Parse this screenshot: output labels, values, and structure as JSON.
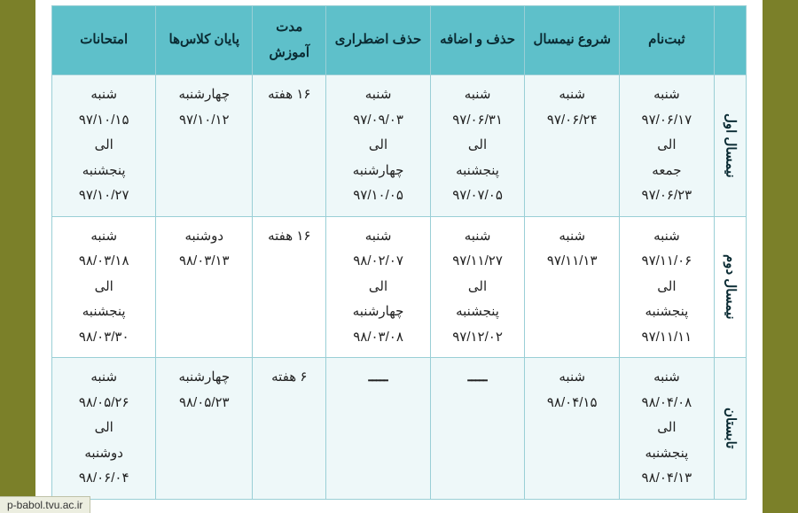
{
  "colors": {
    "page_bg": "#7b8029",
    "paper_bg": "#ffffff",
    "header_bg": "#5ec0ca",
    "header_text": "#0a2b33",
    "border": "#9acfd6",
    "row_odd_bg": "#eef8f9",
    "row_even_bg": "#ffffff",
    "cell_text": "#222222"
  },
  "url": "p-babol.tvu.ac.ir",
  "table": {
    "headers": {
      "registration": "ثبت‌نام",
      "semester_start": "شروع نیمسال",
      "add_drop": "حذف و اضافه",
      "emergency_drop": "حذف اضطراری",
      "duration": "مدت آموزش",
      "classes_end": "پایان کلاس‌ها",
      "exams": "امتحانات"
    },
    "rows": [
      {
        "label": "نیمسال اول",
        "registration": "شنبه\n۹۷/۰۶/۱۷\nالی\nجمعه\n۹۷/۰۶/۲۳",
        "semester_start": "شنبه\n۹۷/۰۶/۲۴",
        "add_drop": "شنبه\n۹۷/۰۶/۳۱\nالی\nپنجشنبه\n۹۷/۰۷/۰۵",
        "emergency_drop": "شنبه\n۹۷/۰۹/۰۳\nالی\nچهارشنبه\n۹۷/۱۰/۰۵",
        "duration": "۱۶ هفته",
        "classes_end": "چهارشنبه\n۹۷/۱۰/۱۲",
        "exams": "شنبه\n۹۷/۱۰/۱۵\nالی\nپنجشنبه\n۹۷/۱۰/۲۷"
      },
      {
        "label": "نیمسال دوم",
        "registration": "شنبه\n۹۷/۱۱/۰۶\nالی\nپنجشنبه\n۹۷/۱۱/۱۱",
        "semester_start": "شنبه\n۹۷/۱۱/۱۳",
        "add_drop": "شنبه\n۹۷/۱۱/۲۷\nالی\nپنجشنبه\n۹۷/۱۲/۰۲",
        "emergency_drop": "شنبه\n۹۸/۰۲/۰۷\nالی\nچهارشنبه\n۹۸/۰۳/۰۸",
        "duration": "۱۶ هفته",
        "classes_end": "دوشنبه\n۹۸/۰۳/۱۳",
        "exams": "شنبه\n۹۸/۰۳/۱۸\nالی\nپنجشنبه\n۹۸/۰۳/۳۰"
      },
      {
        "label": "تابستان",
        "registration": "شنبه\n۹۸/۰۴/۰۸\nالی\nپنجشنبه\n۹۸/۰۴/۱۳",
        "semester_start": "شنبه\n۹۸/۰۴/۱۵",
        "add_drop": "ـــــ",
        "emergency_drop": "ـــــ",
        "duration": "۶ هفته",
        "classes_end": "چهارشنبه\n۹۸/۰۵/۲۳",
        "exams": "شنبه\n۹۸/۰۵/۲۶\nالی\nدوشنبه\n۹۸/۰۶/۰۴"
      }
    ]
  }
}
